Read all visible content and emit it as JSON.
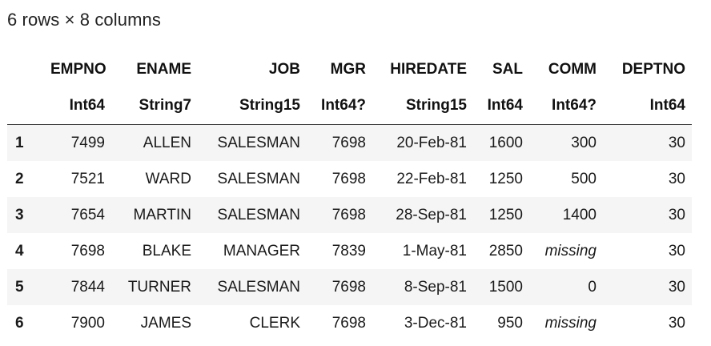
{
  "summary": "6 rows × 8 columns",
  "table": {
    "columns": [
      {
        "name": "EMPNO",
        "type": "Int64"
      },
      {
        "name": "ENAME",
        "type": "String7"
      },
      {
        "name": "JOB",
        "type": "String15"
      },
      {
        "name": "MGR",
        "type": "Int64?"
      },
      {
        "name": "HIREDATE",
        "type": "String15"
      },
      {
        "name": "SAL",
        "type": "Int64"
      },
      {
        "name": "COMM",
        "type": "Int64?"
      },
      {
        "name": "DEPTNO",
        "type": "Int64"
      }
    ],
    "rows": [
      {
        "index": "1",
        "cells": [
          "7499",
          "ALLEN",
          "SALESMAN",
          "7698",
          "20-Feb-81",
          "1600",
          "300",
          "30"
        ]
      },
      {
        "index": "2",
        "cells": [
          "7521",
          "WARD",
          "SALESMAN",
          "7698",
          "22-Feb-81",
          "1250",
          "500",
          "30"
        ]
      },
      {
        "index": "3",
        "cells": [
          "7654",
          "MARTIN",
          "SALESMAN",
          "7698",
          "28-Sep-81",
          "1250",
          "1400",
          "30"
        ]
      },
      {
        "index": "4",
        "cells": [
          "7698",
          "BLAKE",
          "MANAGER",
          "7839",
          "1-May-81",
          "2850",
          "missing",
          "30"
        ]
      },
      {
        "index": "5",
        "cells": [
          "7844",
          "TURNER",
          "SALESMAN",
          "7698",
          "8-Sep-81",
          "1500",
          "0",
          "30"
        ]
      },
      {
        "index": "6",
        "cells": [
          "7900",
          "JAMES",
          "CLERK",
          "7698",
          "3-Dec-81",
          "950",
          "missing",
          "30"
        ]
      }
    ]
  }
}
